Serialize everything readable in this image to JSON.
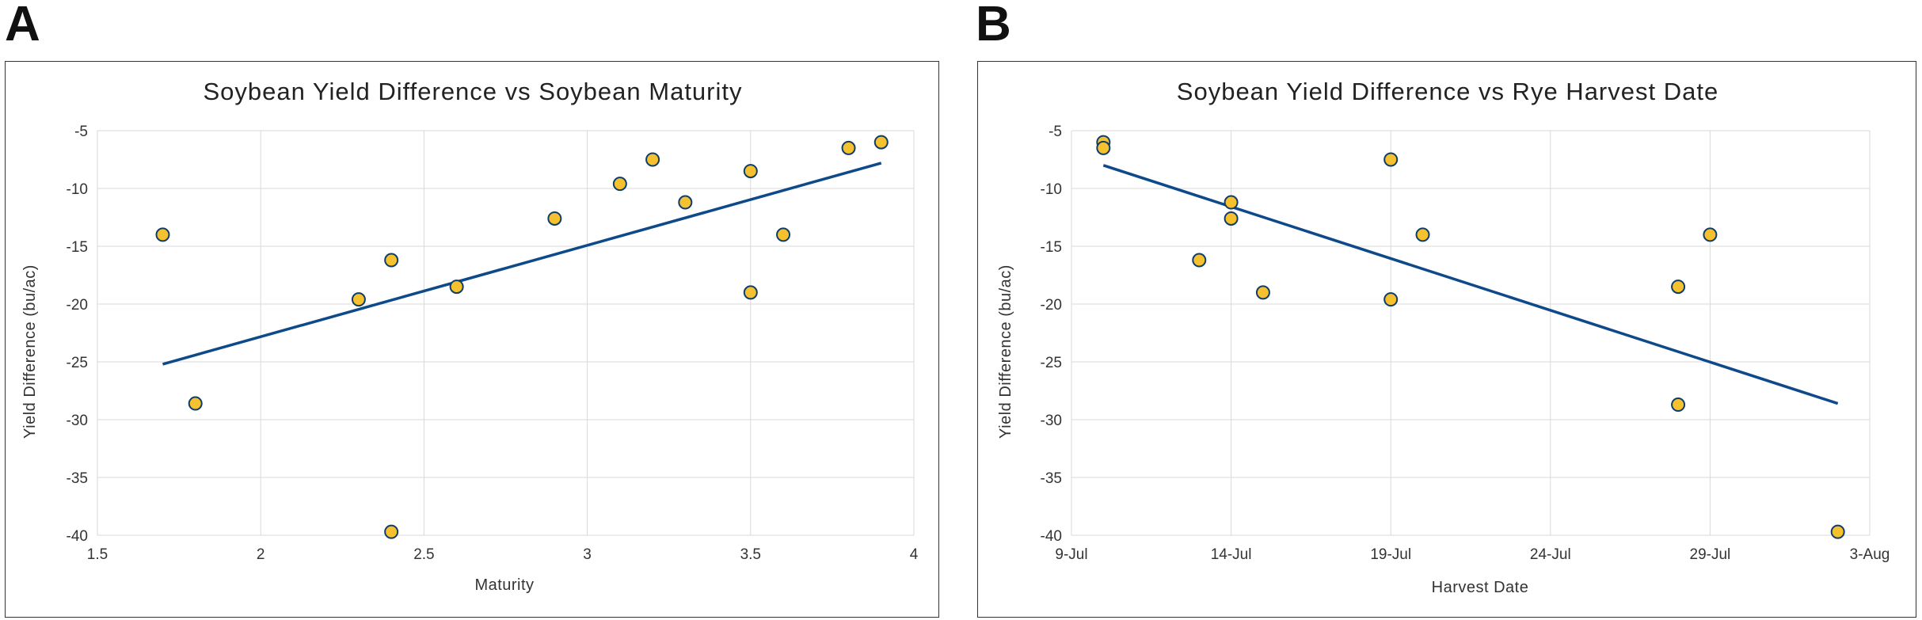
{
  "panels": [
    {
      "letter": "A"
    },
    {
      "letter": "B"
    }
  ],
  "colors": {
    "point_fill": "#f5c12e",
    "point_stroke": "#0e3d6b",
    "trendline": "#0e4a8a",
    "grid": "#d9d9d9"
  },
  "chart_data": [
    {
      "type": "scatter",
      "title": "Soybean Yield Difference vs Soybean Maturity",
      "xlabel": "Maturity",
      "ylabel": "Yield Difference (bu/ac)",
      "xlim": [
        1.5,
        4
      ],
      "ylim": [
        -40,
        -5
      ],
      "x_ticks": [
        "1.5",
        "2",
        "2.5",
        "3",
        "3.5",
        "4"
      ],
      "y_ticks": [
        "-5",
        "-10",
        "-15",
        "-20",
        "-25",
        "-30",
        "-35",
        "-40"
      ],
      "grid": true,
      "legend": false,
      "points": [
        {
          "x": 1.7,
          "y": -14.0
        },
        {
          "x": 1.8,
          "y": -28.6
        },
        {
          "x": 2.3,
          "y": -19.6
        },
        {
          "x": 2.4,
          "y": -16.2
        },
        {
          "x": 2.4,
          "y": -39.7
        },
        {
          "x": 2.6,
          "y": -18.5
        },
        {
          "x": 2.9,
          "y": -12.6
        },
        {
          "x": 3.1,
          "y": -9.6
        },
        {
          "x": 3.2,
          "y": -7.5
        },
        {
          "x": 3.3,
          "y": -11.2
        },
        {
          "x": 3.5,
          "y": -8.5
        },
        {
          "x": 3.5,
          "y": -19.0
        },
        {
          "x": 3.6,
          "y": -14.0
        },
        {
          "x": 3.8,
          "y": -6.5
        },
        {
          "x": 3.9,
          "y": -6.0
        }
      ],
      "trendline": {
        "x": [
          1.7,
          3.9
        ],
        "y": [
          -25.2,
          -7.8
        ]
      }
    },
    {
      "type": "scatter",
      "title": "Soybean Yield Difference vs Rye Harvest Date",
      "xlabel": "Harvest Date",
      "ylabel": "Yield Difference (bu/ac)",
      "xlim": [
        "2023-07-09",
        "2023-08-03"
      ],
      "ylim": [
        -40,
        -5
      ],
      "x_ticks": [
        "9-Jul",
        "14-Jul",
        "19-Jul",
        "24-Jul",
        "29-Jul",
        "3-Aug"
      ],
      "y_ticks": [
        "-5",
        "-10",
        "-15",
        "-20",
        "-25",
        "-30",
        "-35",
        "-40"
      ],
      "grid": true,
      "legend": false,
      "points": [
        {
          "x": "2023-07-10",
          "y": -6.0
        },
        {
          "x": "2023-07-10",
          "y": -6.5
        },
        {
          "x": "2023-07-13",
          "y": -16.2
        },
        {
          "x": "2023-07-14",
          "y": -11.2
        },
        {
          "x": "2023-07-14",
          "y": -12.6
        },
        {
          "x": "2023-07-15",
          "y": -19.0
        },
        {
          "x": "2023-07-19",
          "y": -7.5
        },
        {
          "x": "2023-07-19",
          "y": -19.6
        },
        {
          "x": "2023-07-20",
          "y": -14.0
        },
        {
          "x": "2023-07-28",
          "y": -18.5
        },
        {
          "x": "2023-07-28",
          "y": -28.7
        },
        {
          "x": "2023-07-29",
          "y": -14.0
        },
        {
          "x": "2023-08-02",
          "y": -39.7
        }
      ],
      "trendline": {
        "x": [
          "2023-07-10",
          "2023-08-02"
        ],
        "y": [
          -8.0,
          -28.6
        ]
      }
    }
  ]
}
